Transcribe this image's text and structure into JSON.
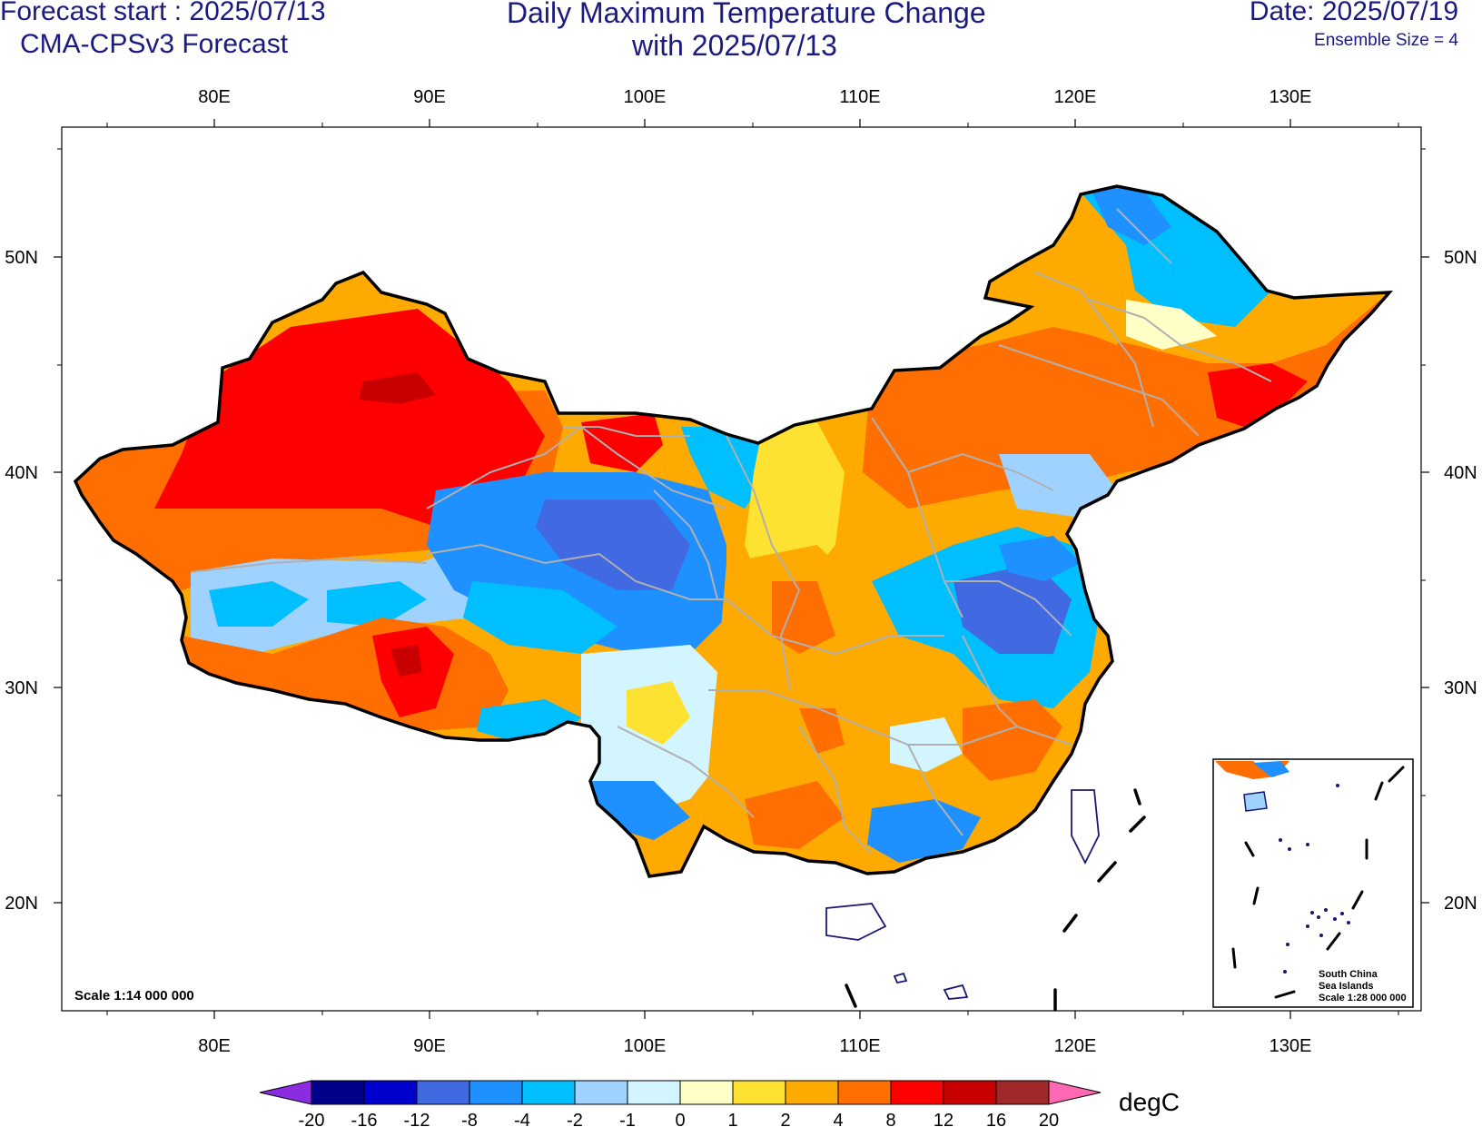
{
  "header": {
    "forecast_start": "Forecast start : 2025/07/13",
    "model": "CMA-CPSv3 Forecast",
    "title_line1": "Daily Maximum Temperature Change",
    "title_line2": "with 2025/07/13",
    "date": "Date: 2025/07/19",
    "ensemble": "Ensemble Size = 4"
  },
  "axes": {
    "lon_labels": [
      "80E",
      "90E",
      "100E",
      "110E",
      "120E",
      "130E"
    ],
    "lat_labels": [
      "50N",
      "40N",
      "30N",
      "20N"
    ]
  },
  "map": {
    "scale_text": "Scale 1:14 000 000",
    "inset_label_lines": [
      "South China",
      "Sea Islands",
      "Scale 1:28 000 000"
    ],
    "border_color": "#000000",
    "province_color": "#b0b0b0",
    "coast_color": "#191970"
  },
  "colorbar": {
    "unit": "degC",
    "tick_labels": [
      "-20",
      "-16",
      "-12",
      "-8",
      "-4",
      "-2",
      "-1",
      "0",
      "1",
      "2",
      "4",
      "8",
      "12",
      "16",
      "20"
    ],
    "low_color": "#8b2be2",
    "high_color": "#ff69b4",
    "colors": [
      "#00008b",
      "#0000cd",
      "#4169e1",
      "#1e90ff",
      "#00bfff",
      "#a0d2ff",
      "#d2f5ff",
      "#ffffc8",
      "#fde232",
      "#ffaa00",
      "#ff6e00",
      "#ff0000",
      "#c80000",
      "#a02828"
    ]
  }
}
